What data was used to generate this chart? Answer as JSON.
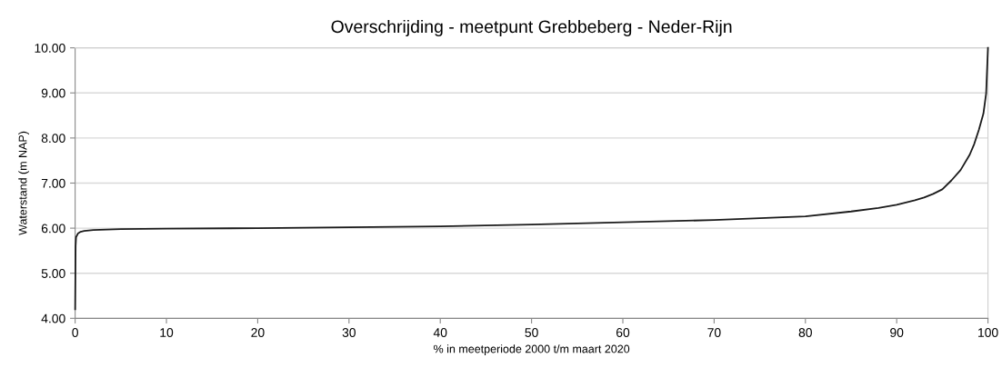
{
  "chart_data": {
    "type": "line",
    "title": "Overschrijding - meetpunt Grebbeberg - Neder-Rijn",
    "xlabel": "% in meetperiode 2000 t/m maart 2020",
    "ylabel": "Waterstand (m NAP)",
    "series": [
      {
        "color": "#1a1a1a",
        "x": [
          0,
          0.05,
          0.1,
          0.3,
          0.6,
          1,
          2,
          5,
          10,
          20,
          30,
          40,
          50,
          60,
          70,
          75,
          80,
          85,
          88,
          90,
          92,
          93,
          94,
          95,
          96,
          97,
          98,
          98.5,
          99,
          99.5,
          99.8,
          100
        ],
        "values": [
          4.2,
          5.6,
          5.8,
          5.88,
          5.92,
          5.94,
          5.96,
          5.98,
          5.99,
          6.0,
          6.02,
          6.04,
          6.08,
          6.13,
          6.18,
          6.22,
          6.26,
          6.37,
          6.45,
          6.52,
          6.62,
          6.68,
          6.76,
          6.86,
          7.06,
          7.29,
          7.63,
          7.87,
          8.18,
          8.54,
          8.99,
          10.0
        ]
      }
    ],
    "xlim": [
      0,
      100
    ],
    "xticks": [
      0,
      10,
      20,
      30,
      40,
      50,
      60,
      70,
      80,
      90,
      100
    ],
    "ylim": [
      4,
      10
    ],
    "yticks": [
      {
        "value": 4,
        "label": "4.00"
      },
      {
        "value": 5,
        "label": "5.00"
      },
      {
        "value": 6,
        "label": "6.00"
      },
      {
        "value": 7,
        "label": "7.00"
      },
      {
        "value": 8,
        "label": "8.00"
      },
      {
        "value": 9,
        "label": "9.00"
      },
      {
        "value": 10,
        "label": "10.00"
      }
    ],
    "grid": "y",
    "legend": false,
    "marker": "none",
    "line_style": "solid"
  }
}
